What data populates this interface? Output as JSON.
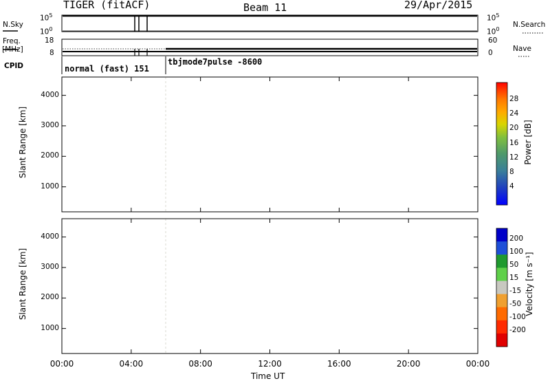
{
  "header": {
    "title": "TIGER (fitACF)",
    "beam": "Beam 11",
    "date": "29/Apr/2015"
  },
  "strip_labels": {
    "nsky": "N.Sky",
    "nsearch": "N.Search",
    "freq": "Freq.",
    "mhz": "[MHz]",
    "nave": "Nave",
    "cpid": "CPID",
    "nsky_ticks": [
      "10^5",
      "10^0"
    ],
    "nsearch_ticks": [
      "10^5",
      "10^0"
    ],
    "freq_ticks": [
      "18",
      "8"
    ],
    "nave_ticks": [
      "60",
      "0"
    ]
  },
  "cpid": {
    "seg1": "normal (fast) 151",
    "seg2": "tbjmode7pulse -8600"
  },
  "chart_data": [
    {
      "type": "heatmap",
      "panel": "power",
      "ylabel": "Slant Range [km]",
      "yticks": [
        "4000",
        "3000",
        "2000",
        "1000"
      ],
      "ylim": [
        180,
        4600
      ],
      "colorbar_label": "Power [dB]",
      "colorbar_ticks": [
        "28",
        "24",
        "20",
        "16",
        "12",
        "8",
        "4"
      ],
      "colors": [
        "#0000ff",
        "#1f3fc0",
        "#3a7f99",
        "#4f9a6a",
        "#7fbf3f",
        "#d9d500",
        "#ffaa00",
        "#ff7a00",
        "#ff3a00",
        "#ff0000"
      ]
    },
    {
      "type": "heatmap",
      "panel": "velocity",
      "ylabel": "Slant Range [km]",
      "yticks": [
        "4000",
        "3000",
        "2000",
        "1000"
      ],
      "ylim": [
        180,
        4600
      ],
      "colorbar_label": "Velocity [m s⁻¹]",
      "colorbar_ticks": [
        "200",
        "100",
        "50",
        "15",
        "-15",
        "-50",
        "-100",
        "-200"
      ],
      "colors": [
        "#0000c8",
        "#1e4fd8",
        "#1f9a2f",
        "#5fd04a",
        "#c8c8c0",
        "#f0a030",
        "#ff6a00",
        "#ff2a00",
        "#e00000"
      ]
    }
  ],
  "xaxis": {
    "ticks": [
      "00:00",
      "04:00",
      "08:00",
      "12:00",
      "16:00",
      "20:00",
      "00:00"
    ],
    "label": "Time UT"
  }
}
